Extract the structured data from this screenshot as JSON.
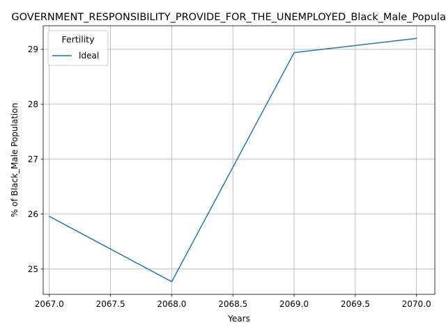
{
  "chart_data": {
    "type": "line",
    "title": "GOVERNMENT_RESPONSIBILITY_PROVIDE_FOR_THE_UNEMPLOYED_Black_Male_Population",
    "xlabel": "Years",
    "ylabel": "% of Black_Male Population",
    "xlim": [
      2066.95,
      2070.15
    ],
    "ylim": [
      24.54,
      29.43
    ],
    "xticks": [
      "2067.0",
      "2067.5",
      "2068.0",
      "2068.5",
      "2069.0",
      "2069.5",
      "2070.0"
    ],
    "yticks": [
      "25",
      "26",
      "27",
      "28",
      "29"
    ],
    "grid": true,
    "legend": {
      "title": "Fertility",
      "placement": "top-left"
    },
    "colors": {
      "series": "#1f77b4",
      "grid": "#b0b0b0"
    },
    "x": [
      2067,
      2068,
      2069,
      2070
    ],
    "series": [
      {
        "name": "Ideal",
        "values": [
          25.96,
          24.77,
          28.94,
          29.2
        ]
      }
    ]
  }
}
